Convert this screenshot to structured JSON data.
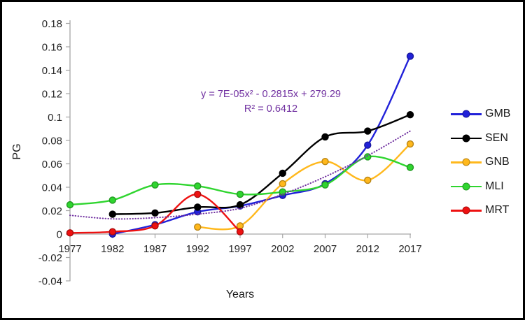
{
  "figure": {
    "background": "#ffffff",
    "border_color": "#000000"
  },
  "chart_data": {
    "type": "line",
    "title": "",
    "xlabel": "Years",
    "ylabel": "PG",
    "x_years": [
      1977,
      1982,
      1987,
      1992,
      1997,
      2002,
      2007,
      2012,
      2017
    ],
    "ylim": [
      -0.04,
      0.18
    ],
    "yticks": [
      {
        "value": 0.18,
        "label": "0.18"
      },
      {
        "value": 0.16,
        "label": "0.16"
      },
      {
        "value": 0.14,
        "label": "0.14"
      },
      {
        "value": 0.12,
        "label": "0.12"
      },
      {
        "value": 0.1,
        "label": "0.1"
      },
      {
        "value": 0.08,
        "label": "0.08"
      },
      {
        "value": 0.06,
        "label": "0.06"
      },
      {
        "value": 0.04,
        "label": "0.04"
      },
      {
        "value": 0.02,
        "label": "0.02"
      },
      {
        "value": 0.0,
        "label": "0"
      },
      {
        "value": -0.02,
        "label": "-0.02"
      },
      {
        "value": -0.04,
        "label": "-0.04"
      }
    ],
    "grid": false,
    "legend_position": "right",
    "series": [
      {
        "name": "GMB",
        "color": "#2121D9",
        "years": [
          1982,
          1987,
          1992,
          1997,
          2002,
          2007,
          2012,
          2017
        ],
        "values": [
          0.0,
          0.008,
          0.019,
          0.024,
          0.033,
          0.043,
          0.076,
          0.152
        ]
      },
      {
        "name": "SEN",
        "color": "#000000",
        "years": [
          1982,
          1987,
          1992,
          1997,
          2002,
          2007,
          2012,
          2017
        ],
        "values": [
          0.017,
          0.018,
          0.023,
          0.025,
          0.052,
          0.083,
          0.088,
          0.102
        ]
      },
      {
        "name": "GNB",
        "color": "#FFB81C",
        "years": [
          1992,
          1997,
          2002,
          2007,
          2012,
          2017
        ],
        "values": [
          0.006,
          0.007,
          0.043,
          0.062,
          0.046,
          0.077
        ]
      },
      {
        "name": "MLI",
        "color": "#2FD52F",
        "years": [
          1977,
          1982,
          1987,
          1992,
          1997,
          2002,
          2007,
          2012,
          2017
        ],
        "values": [
          0.025,
          0.029,
          0.042,
          0.041,
          0.034,
          0.036,
          0.042,
          0.066,
          0.057
        ]
      },
      {
        "name": "MRT",
        "color": "#EE1111",
        "years": [
          1977,
          1982,
          1987,
          1992,
          1997
        ],
        "values": [
          0.001,
          0.002,
          0.007,
          0.034,
          0.002
        ]
      }
    ],
    "trendline": {
      "color": "#7030A0",
      "style": "dotted",
      "equation": "y = 7E-05x² - 0.2815x + 279.29",
      "r_squared": "R² = 0.6412",
      "years": [
        1977,
        1982,
        1987,
        1992,
        1997,
        2002,
        2007,
        2012,
        2017
      ],
      "values": [
        0.016,
        0.013,
        0.014,
        0.017,
        0.022,
        0.034,
        0.049,
        0.067,
        0.088
      ]
    }
  }
}
